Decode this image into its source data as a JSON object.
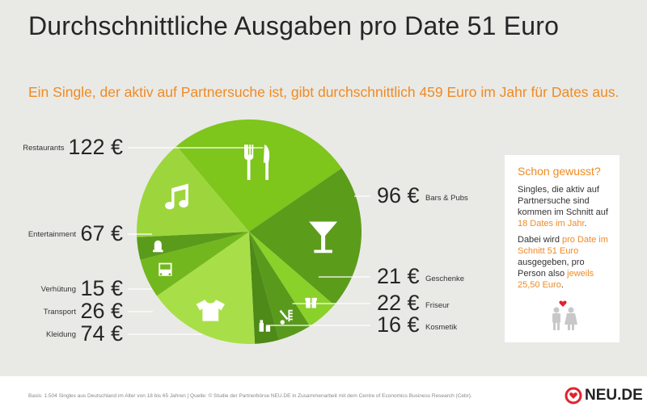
{
  "title": "Durchschnittliche Ausgaben pro Date 51 Euro",
  "subtitle": "Ein Single, der aktiv auf Partnersuche ist, gibt durchschnittlich 459 Euro im Jahr für Dates aus.",
  "chart_data": {
    "type": "pie",
    "title": "Durchschnittliche Ausgaben pro Date 51 Euro",
    "unit": "€",
    "total": 459,
    "slices": [
      {
        "name": "Restaurants",
        "value": 122,
        "label": "122 €",
        "color": "#7ec51c",
        "icon": "fork-knife-icon"
      },
      {
        "name": "Bars & Pubs",
        "value": 96,
        "label": "96 €",
        "color": "#5c9c1b",
        "icon": "cocktail-glass-icon"
      },
      {
        "name": "Geschenke",
        "value": 21,
        "label": "21 €",
        "color": "#8ad129",
        "icon": "gift-icon"
      },
      {
        "name": "Friseur",
        "value": 22,
        "label": "22 €",
        "color": "#599a1c",
        "icon": "scissors-comb-icon"
      },
      {
        "name": "Kosmetik",
        "value": 16,
        "label": "16 €",
        "color": "#4d8a18",
        "icon": "cosmetics-icon"
      },
      {
        "name": "Kleidung",
        "value": 74,
        "label": "74 €",
        "color": "#a8df48",
        "icon": "tshirt-icon"
      },
      {
        "name": "Transport",
        "value": 26,
        "label": "26 €",
        "color": "#73b71e",
        "icon": "bus-icon"
      },
      {
        "name": "Verhütung",
        "value": 15,
        "label": "15 €",
        "color": "#5a9b1b",
        "icon": "condom-icon"
      },
      {
        "name": "Entertainment",
        "value": 67,
        "label": "67 €",
        "color": "#9cd63c",
        "icon": "music-note-icon"
      }
    ]
  },
  "info": {
    "title": "Schon gewusst?",
    "p1_a": "Singles, die aktiv auf Partnersuche sind kommen im Schnitt auf ",
    "p1_b": "18 Dates im Jahr",
    "p1_c": ".",
    "p2_a": "Dabei wird ",
    "p2_b": "pro Date im Schnitt 51 Euro",
    "p2_c": " ausgegeben, pro Person also ",
    "p2_d": "jeweils 25,50 Euro",
    "p2_e": "."
  },
  "footer": {
    "footnote": "Basis: 1.504 Singles aus Deutschland im Alter von 18 bis 65 Jahren | Quelle: © Studie der Partnerbörse NEU.DE in Zusammenarbeit mit dem Centre of Economics Business Research (Cebr).",
    "logo": "NEU.DE",
    "logo_color": "#e0232f"
  }
}
